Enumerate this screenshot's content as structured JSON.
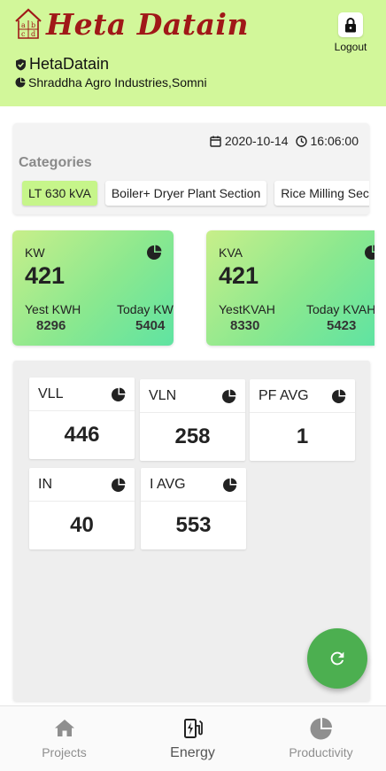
{
  "header": {
    "brand_mark": "abcd",
    "logo_text": "Heta Datain",
    "username": "HetaDatain",
    "organization": "Shraddha Agro Industries,Somni",
    "logout_label": "Logout"
  },
  "datetime": {
    "date": "2020-10-14",
    "time": "16:06:00"
  },
  "categories": {
    "title": "Categories",
    "chips": [
      {
        "label": "LT 630 kVA",
        "active": true
      },
      {
        "label": "Boiler+ Dryer Plant Section",
        "active": false
      },
      {
        "label": "Rice Milling Section",
        "active": false
      }
    ]
  },
  "metric_cards": [
    {
      "label": "KW",
      "value": "421",
      "yest_label": "Yest KWH",
      "yest_value": "8296",
      "today_label": "Today KWH",
      "today_value": "5404"
    },
    {
      "label": "KVA",
      "value": "421",
      "yest_label": "YestKVAH",
      "yest_value": "8330",
      "today_label": "Today KVAH",
      "today_value": "5423"
    }
  ],
  "parameters": [
    {
      "label": "VLL",
      "value": "446"
    },
    {
      "label": "VLN",
      "value": "258"
    },
    {
      "label": "PF AVG",
      "value": "1"
    },
    {
      "label": "IN",
      "value": "40"
    },
    {
      "label": "I AVG",
      "value": "553"
    }
  ],
  "bottom_nav": [
    {
      "label": "Projects",
      "icon": "home-icon",
      "active": false
    },
    {
      "label": "Energy",
      "icon": "energy-icon",
      "active": true
    },
    {
      "label": "Productivity",
      "icon": "pie-chart-icon",
      "active": false
    }
  ],
  "colors": {
    "header_bg": "#d2f79a",
    "logo_red": "#a01818",
    "chip_active": "#c6f58a",
    "card_gradient_start": "#c8ef8a",
    "card_gradient_end": "#5fe3a2",
    "fab_green": "#4caf50"
  }
}
